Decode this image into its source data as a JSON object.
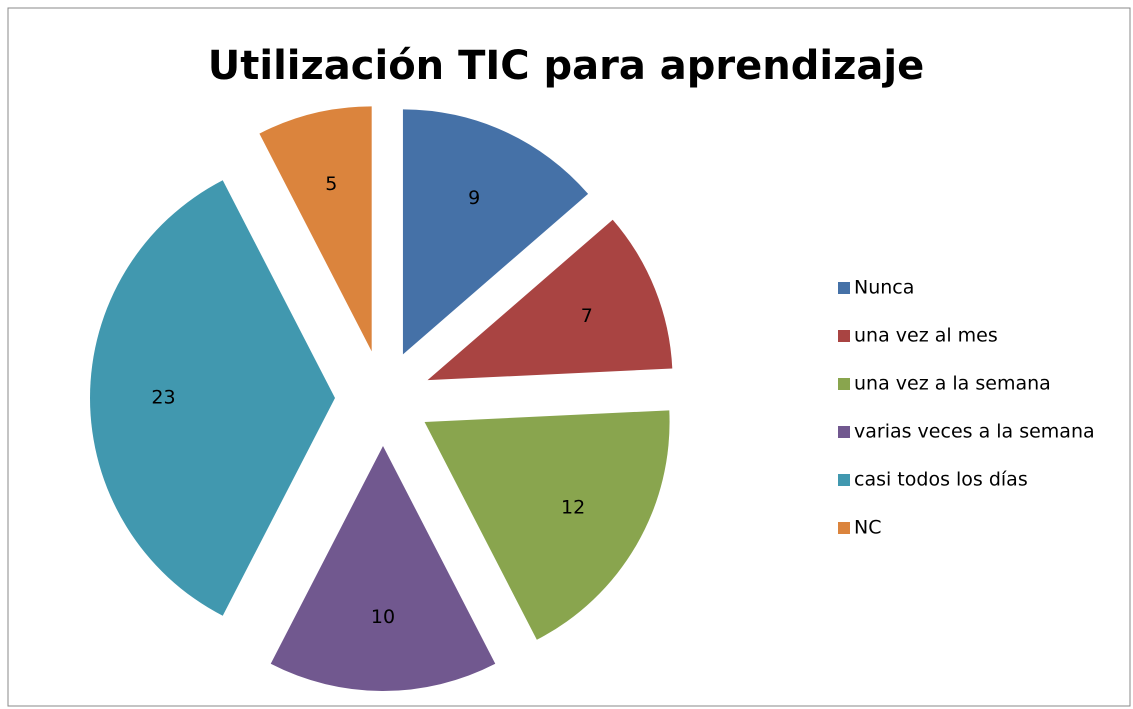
{
  "chart_data": {
    "type": "pie",
    "title": "Utilización TIC para aprendizaje",
    "categories": [
      "Nunca",
      "una vez al mes",
      "una vez a la semana",
      "varias veces a la semana",
      "casi todos los días",
      "NC"
    ],
    "values": [
      9,
      7,
      12,
      10,
      23,
      5
    ],
    "colors": [
      "#4571a7",
      "#a94442",
      "#89a54e",
      "#71588f",
      "#4198af",
      "#db843d"
    ],
    "exploded": true,
    "legend": "right"
  }
}
